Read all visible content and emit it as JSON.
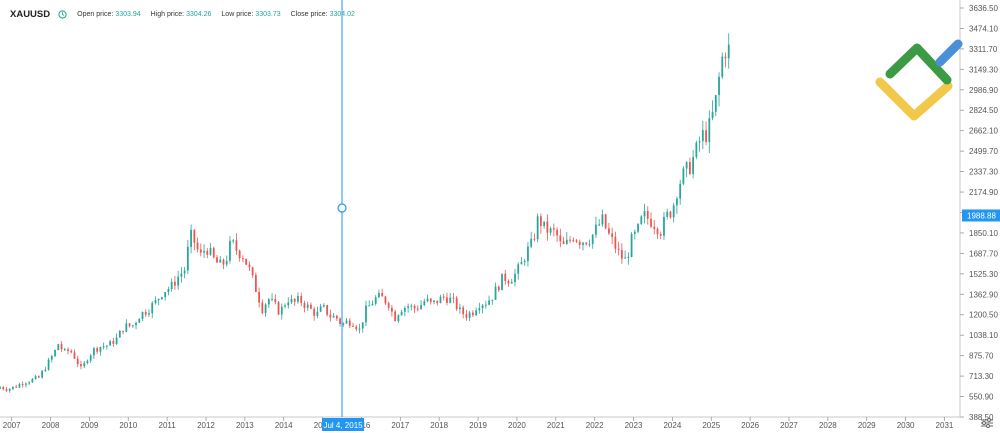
{
  "header": {
    "symbol": "XAUUSD",
    "open_label": "Open price:",
    "open_value": "3303.94",
    "high_label": "High price:",
    "high_value": "3304.26",
    "low_label": "Low price:",
    "low_value": "3303.73",
    "close_label": "Close price:",
    "close_value": "3304.02"
  },
  "crosshair": {
    "date_label": "Jul 4, 2015",
    "price_label": "1988.88",
    "price": 1988.88
  },
  "colors": {
    "up": "#26a69a",
    "down": "#ef5350",
    "crosshair": "#2196f3",
    "price_label_bg": "#2196f3"
  },
  "icons": [
    "clock-icon",
    "litefinance-logo",
    "chart-settings-icon"
  ],
  "chart_data": {
    "type": "candlestick",
    "x_ticks": [
      "2007",
      "2008",
      "2009",
      "2010",
      "2011",
      "2012",
      "2013",
      "2014",
      "2015",
      "2016",
      "2017",
      "2018",
      "2019",
      "2020",
      "2021",
      "2022",
      "2023",
      "2024",
      "2025",
      "2026",
      "2027",
      "2028",
      "2029",
      "2030",
      "2031"
    ],
    "x_range": [
      2006.7,
      2031.4
    ],
    "y_ticks": [
      "388.50",
      "550.90",
      "713.30",
      "875.70",
      "1038.10",
      "1200.50",
      "1362.90",
      "1525.30",
      "1687.70",
      "1850.10",
      "2012.50",
      "2174.90",
      "2337.30",
      "2499.70",
      "2662.10",
      "2824.50",
      "2986.90",
      "3149.30",
      "3311.70",
      "3474.10",
      "3636.50"
    ],
    "y_range": [
      388.5,
      3700
    ],
    "crosshair_x": 2015.5,
    "series": [
      [
        2006.7,
        625
      ],
      [
        2006.9,
        610
      ],
      [
        2007.1,
        630
      ],
      [
        2007.3,
        665
      ],
      [
        2007.5,
        680
      ],
      [
        2007.7,
        700
      ],
      [
        2007.9,
        800
      ],
      [
        2008.1,
        900
      ],
      [
        2008.2,
        970
      ],
      [
        2008.35,
        900
      ],
      [
        2008.5,
        920
      ],
      [
        2008.65,
        850
      ],
      [
        2008.8,
        760
      ],
      [
        2008.95,
        860
      ],
      [
        2009.1,
        920
      ],
      [
        2009.3,
        950
      ],
      [
        2009.5,
        960
      ],
      [
        2009.7,
        1010
      ],
      [
        2009.9,
        1110
      ],
      [
        2010.1,
        1110
      ],
      [
        2010.3,
        1200
      ],
      [
        2010.5,
        1240
      ],
      [
        2010.7,
        1300
      ],
      [
        2010.9,
        1390
      ],
      [
        2011.1,
        1420
      ],
      [
        2011.3,
        1510
      ],
      [
        2011.45,
        1560
      ],
      [
        2011.6,
        1830
      ],
      [
        2011.7,
        1780
      ],
      [
        2011.85,
        1660
      ],
      [
        2012.0,
        1740
      ],
      [
        2012.2,
        1640
      ],
      [
        2012.35,
        1590
      ],
      [
        2012.5,
        1620
      ],
      [
        2012.65,
        1780
      ],
      [
        2012.8,
        1710
      ],
      [
        2012.95,
        1670
      ],
      [
        2013.1,
        1570
      ],
      [
        2013.3,
        1390
      ],
      [
        2013.45,
        1250
      ],
      [
        2013.6,
        1330
      ],
      [
        2013.75,
        1280
      ],
      [
        2013.9,
        1220
      ],
      [
        2014.1,
        1330
      ],
      [
        2014.25,
        1290
      ],
      [
        2014.4,
        1320
      ],
      [
        2014.55,
        1280
      ],
      [
        2014.7,
        1240
      ],
      [
        2014.85,
        1200
      ],
      [
        2015.0,
        1260
      ],
      [
        2015.2,
        1190
      ],
      [
        2015.35,
        1180
      ],
      [
        2015.5,
        1120
      ],
      [
        2015.65,
        1150
      ],
      [
        2015.8,
        1140
      ],
      [
        2015.95,
        1080
      ],
      [
        2016.1,
        1230
      ],
      [
        2016.25,
        1290
      ],
      [
        2016.4,
        1340
      ],
      [
        2016.55,
        1330
      ],
      [
        2016.7,
        1290
      ],
      [
        2016.85,
        1170
      ],
      [
        2017.0,
        1250
      ],
      [
        2017.2,
        1270
      ],
      [
        2017.35,
        1250
      ],
      [
        2017.5,
        1270
      ],
      [
        2017.65,
        1320
      ],
      [
        2017.8,
        1280
      ],
      [
        2017.95,
        1310
      ],
      [
        2018.1,
        1340
      ],
      [
        2018.25,
        1330
      ],
      [
        2018.4,
        1290
      ],
      [
        2018.55,
        1220
      ],
      [
        2018.7,
        1200
      ],
      [
        2018.85,
        1220
      ],
      [
        2019.0,
        1290
      ],
      [
        2019.2,
        1300
      ],
      [
        2019.35,
        1340
      ],
      [
        2019.5,
        1420
      ],
      [
        2019.65,
        1500
      ],
      [
        2019.8,
        1480
      ],
      [
        2019.95,
        1520
      ],
      [
        2020.1,
        1590
      ],
      [
        2020.25,
        1700
      ],
      [
        2020.4,
        1770
      ],
      [
        2020.55,
        1970
      ],
      [
        2020.7,
        1890
      ],
      [
        2020.85,
        1860
      ],
      [
        2021.0,
        1850
      ],
      [
        2021.15,
        1730
      ],
      [
        2021.3,
        1770
      ],
      [
        2021.45,
        1830
      ],
      [
        2021.6,
        1790
      ],
      [
        2021.75,
        1790
      ],
      [
        2021.9,
        1810
      ],
      [
        2022.1,
        1910
      ],
      [
        2022.2,
        1950
      ],
      [
        2022.35,
        1840
      ],
      [
        2022.5,
        1760
      ],
      [
        2022.65,
        1670
      ],
      [
        2022.8,
        1630
      ],
      [
        2022.95,
        1790
      ],
      [
        2023.1,
        1860
      ],
      [
        2023.25,
        1990
      ],
      [
        2023.4,
        1960
      ],
      [
        2023.55,
        1920
      ],
      [
        2023.7,
        1870
      ],
      [
        2023.85,
        1980
      ],
      [
        2024.0,
        2040
      ],
      [
        2024.15,
        2230
      ],
      [
        2024.3,
        2320
      ],
      [
        2024.45,
        2380
      ],
      [
        2024.6,
        2490
      ],
      [
        2024.75,
        2620
      ],
      [
        2024.9,
        2640
      ],
      [
        2025.05,
        2800
      ],
      [
        2025.15,
        2950
      ],
      [
        2025.25,
        3200
      ],
      [
        2025.35,
        3310
      ],
      [
        2025.45,
        3304
      ]
    ]
  }
}
